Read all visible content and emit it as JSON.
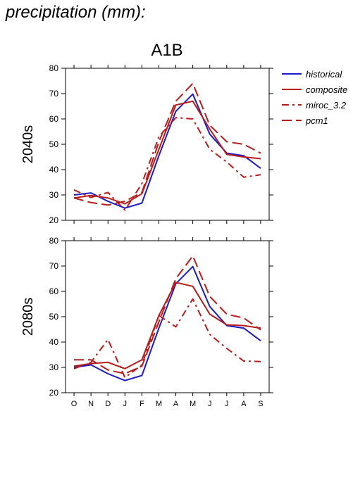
{
  "page": {
    "heading": "precipitation (mm):"
  },
  "chart_data": {
    "type": "line",
    "title": "A1B",
    "categories": [
      "O",
      "N",
      "D",
      "J",
      "F",
      "M",
      "A",
      "M",
      "J",
      "J",
      "A",
      "S"
    ],
    "ylim": [
      20,
      80
    ],
    "yticks": [
      20,
      30,
      40,
      50,
      60,
      70,
      80
    ],
    "legend": {
      "position": "top-right",
      "entries": [
        "historical",
        "composite",
        "miroc_3.2",
        "pcm1"
      ]
    },
    "colors": {
      "historical": "#1c1cc8",
      "composite": "#b81c1c",
      "miroc_3.2": "#b81c1c",
      "pcm1": "#b81c1c"
    },
    "panels": [
      {
        "row_label": "2040s",
        "series": [
          {
            "name": "historical",
            "style": "solid",
            "values": [
              30.0,
              30.8,
              27.5,
              24.8,
              26.8,
              45.5,
              63.0,
              69.8,
              54.0,
              46.5,
              45.5,
              40.5
            ]
          },
          {
            "name": "composite",
            "style": "solid",
            "values": [
              28.8,
              29.8,
              28.8,
              26.5,
              30.5,
              48.0,
              65.5,
              67.0,
              56.0,
              46.0,
              45.0,
              44.3
            ]
          },
          {
            "name": "miroc_3.2",
            "style": "dashdot",
            "values": [
              32.0,
              29.0,
              31.0,
              24.0,
              34.5,
              53.0,
              60.5,
              60.0,
              48.0,
              43.0,
              37.0,
              38.0
            ]
          },
          {
            "name": "pcm1",
            "style": "dashed",
            "values": [
              28.8,
              27.0,
              26.0,
              27.5,
              31.0,
              51.0,
              67.0,
              74.0,
              57.5,
              51.0,
              50.0,
              46.5
            ]
          }
        ]
      },
      {
        "row_label": "2080s",
        "series": [
          {
            "name": "historical",
            "style": "solid",
            "values": [
              30.0,
              31.0,
              27.5,
              24.8,
              26.8,
              45.5,
              63.0,
              69.8,
              54.0,
              46.5,
              45.5,
              40.5
            ]
          },
          {
            "name": "composite",
            "style": "solid",
            "values": [
              30.5,
              31.5,
              32.0,
              29.5,
              33.0,
              50.5,
              63.5,
              62.0,
              51.0,
              46.8,
              46.5,
              45.5
            ]
          },
          {
            "name": "miroc_3.2",
            "style": "dashdot",
            "values": [
              29.5,
              32.0,
              41.0,
              26.0,
              31.0,
              50.5,
              46.0,
              57.0,
              43.0,
              37.5,
              32.5,
              32.3
            ]
          },
          {
            "name": "pcm1",
            "style": "dashed",
            "values": [
              33.0,
              33.0,
              29.0,
              27.5,
              30.5,
              48.0,
              65.0,
              74.0,
              58.0,
              51.0,
              49.5,
              44.8
            ]
          }
        ]
      }
    ]
  }
}
